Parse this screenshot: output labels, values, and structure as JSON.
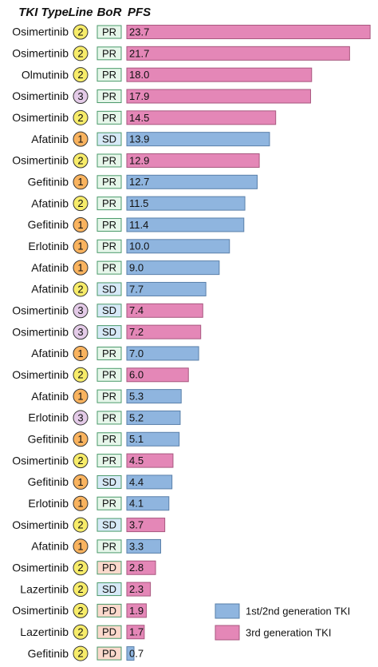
{
  "chart_data": {
    "type": "bar",
    "headers": {
      "category": "TKI Type",
      "line": "Line",
      "bor": "BoR",
      "value": "PFS"
    },
    "categories": [
      "Osimertinib",
      "Osimertinib",
      "Olmutinib",
      "Osimertinib",
      "Osimertinib",
      "Afatinib",
      "Osimertinib",
      "Gefitinib",
      "Afatinib",
      "Gefitinib",
      "Erlotinib",
      "Afatinib",
      "Afatinib",
      "Osimertinib",
      "Osimertinib",
      "Afatinib",
      "Osimertinib",
      "Afatinib",
      "Erlotinib",
      "Gefitinib",
      "Osimertinib",
      "Gefitinib",
      "Erlotinib",
      "Osimertinib",
      "Afatinib",
      "Osimertinib",
      "Lazertinib",
      "Osimertinib",
      "Lazertinib",
      "Gefitinib"
    ],
    "line": [
      2,
      2,
      2,
      3,
      2,
      1,
      2,
      1,
      2,
      1,
      1,
      1,
      2,
      3,
      3,
      1,
      2,
      1,
      3,
      1,
      2,
      1,
      1,
      2,
      1,
      2,
      2,
      2,
      2,
      2
    ],
    "bor": [
      "PR",
      "PR",
      "PR",
      "PR",
      "PR",
      "SD",
      "PR",
      "PR",
      "PR",
      "PR",
      "PR",
      "PR",
      "SD",
      "SD",
      "SD",
      "PR",
      "PR",
      "PR",
      "PR",
      "PR",
      "PR",
      "SD",
      "PR",
      "SD",
      "PR",
      "PD",
      "SD",
      "PD",
      "PD",
      "PD"
    ],
    "line_colors": {
      "1": "#f9b35f",
      "2": "#f7ec6a",
      "3": "#e4cbe8"
    },
    "bor_colors": {
      "PR": "#e6f6ea",
      "SD": "#d6e9f7",
      "PD": "#fbd9cc"
    },
    "series": [
      {
        "name": "1st/2nd generation TKI",
        "color": "#8fb5df",
        "values": [
          null,
          null,
          null,
          null,
          null,
          13.9,
          null,
          12.7,
          11.5,
          11.4,
          10.0,
          9.0,
          7.7,
          null,
          null,
          7.0,
          null,
          5.3,
          5.2,
          5.1,
          null,
          4.4,
          4.1,
          null,
          3.3,
          null,
          null,
          null,
          null,
          0.7
        ],
        "value_labels": [
          null,
          null,
          null,
          null,
          null,
          "13.9",
          null,
          "12.7",
          "11.5",
          "11.4",
          "10.0",
          "9.0",
          "7.7",
          null,
          null,
          "7.0",
          null,
          "5.3",
          "5.2",
          "5.1",
          null,
          "4.4",
          "4.1",
          null,
          "3.3",
          null,
          null,
          null,
          null,
          "0.7"
        ]
      },
      {
        "name": "3rd generation TKI",
        "color": "#e487b7",
        "values": [
          23.7,
          21.7,
          18.0,
          17.9,
          14.5,
          null,
          12.9,
          null,
          null,
          null,
          null,
          null,
          null,
          7.4,
          7.2,
          null,
          6.0,
          null,
          null,
          null,
          4.5,
          null,
          null,
          3.7,
          null,
          2.8,
          2.3,
          1.9,
          1.7,
          null
        ],
        "value_labels": [
          "23.7",
          "21.7",
          "18.0",
          "17.9",
          "14.5",
          null,
          "12.9",
          null,
          null,
          null,
          null,
          null,
          null,
          "7.4",
          "7.2",
          null,
          "6.0",
          null,
          null,
          null,
          "4.5",
          null,
          null,
          "3.7",
          null,
          "2.8",
          "2.3",
          "1.9",
          "1.7",
          null
        ]
      }
    ],
    "xlim": [
      0,
      24
    ],
    "legend": "bottom-right"
  }
}
